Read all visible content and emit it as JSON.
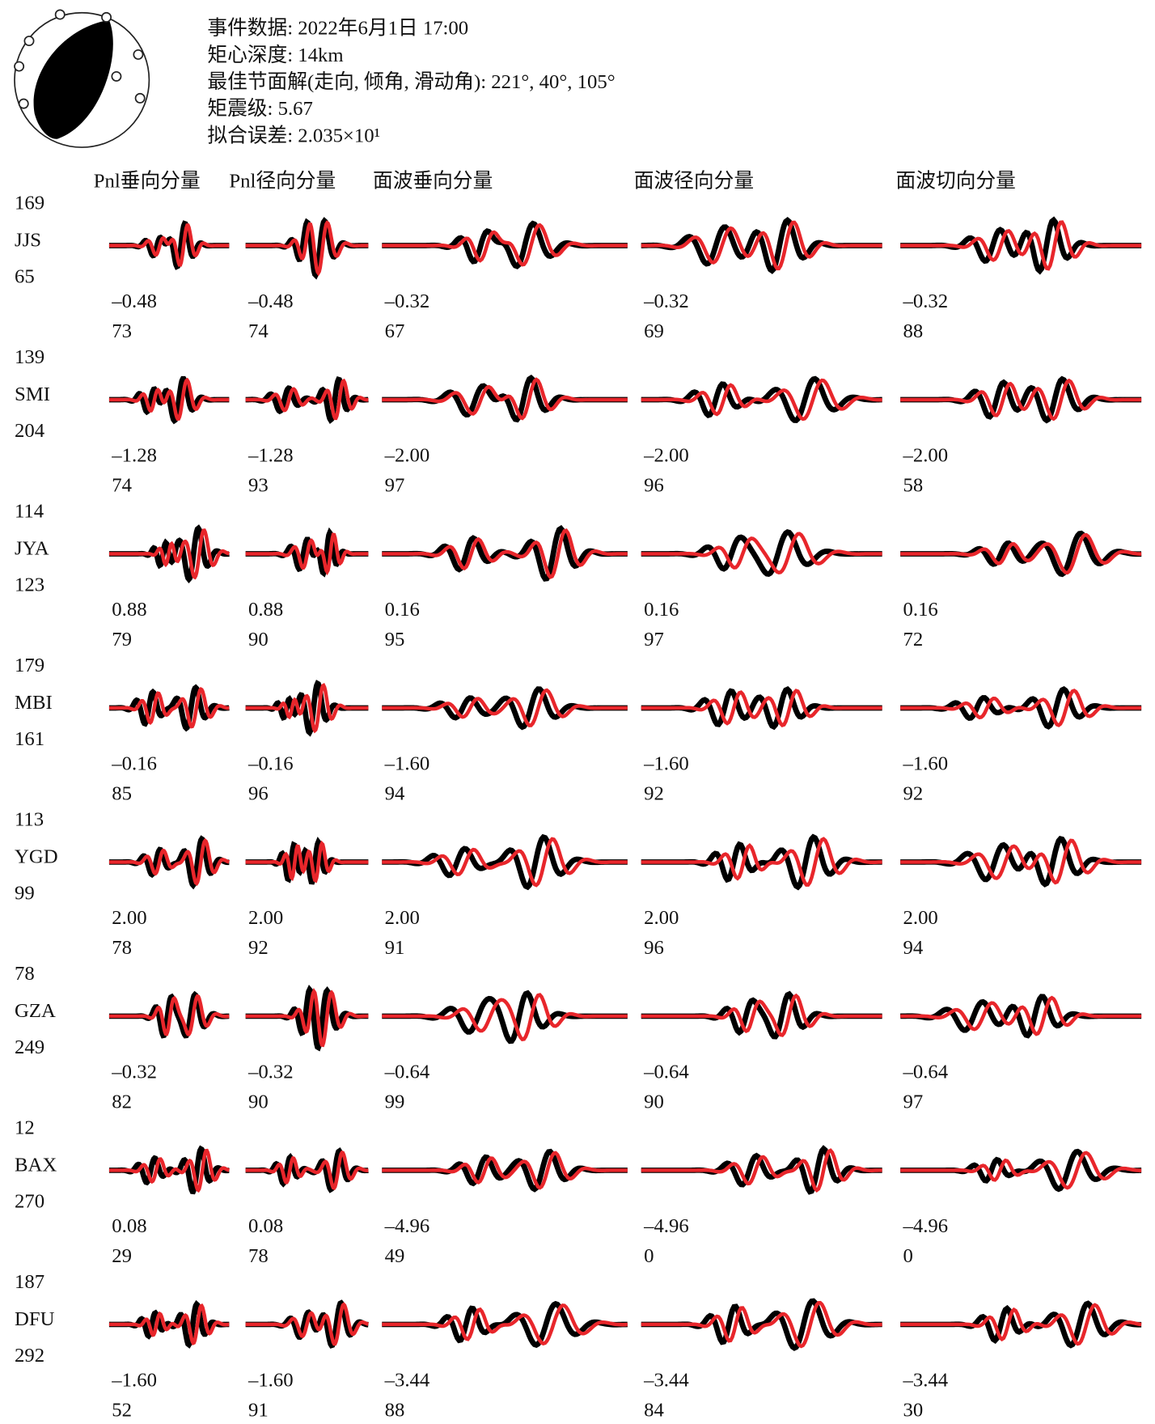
{
  "header": {
    "lines": [
      "事件数据: 2022年6月1日  17:00",
      "矩心深度: 14km",
      "最佳节面解(走向, 倾角, 滑动角): 221°, 40°, 105°",
      "矩震级: 5.67",
      "拟合误差: 2.035×10¹"
    ]
  },
  "columns": [
    "Pnl垂向分量",
    "Pnl径向分量",
    "面波垂向分量",
    "面波径向分量",
    "面波切向分量"
  ],
  "stations": [
    {
      "distance": 169,
      "name": "JJS",
      "azimuth": 65,
      "shifts": [
        "–0.48",
        "–0.48",
        "–0.32",
        "–0.32",
        "–0.32"
      ],
      "correlations": [
        73,
        74,
        67,
        69,
        88
      ]
    },
    {
      "distance": 139,
      "name": "SMI",
      "azimuth": 204,
      "shifts": [
        "–1.28",
        "–1.28",
        "–2.00",
        "–2.00",
        "–2.00"
      ],
      "correlations": [
        74,
        93,
        97,
        96,
        58
      ]
    },
    {
      "distance": 114,
      "name": "JYA",
      "azimuth": 123,
      "shifts": [
        "0.88",
        "0.88",
        "0.16",
        "0.16",
        "0.16"
      ],
      "correlations": [
        79,
        90,
        95,
        97,
        72
      ]
    },
    {
      "distance": 179,
      "name": "MBI",
      "azimuth": 161,
      "shifts": [
        "–0.16",
        "–0.16",
        "–1.60",
        "–1.60",
        "–1.60"
      ],
      "correlations": [
        85,
        96,
        94,
        92,
        92
      ]
    },
    {
      "distance": 113,
      "name": "YGD",
      "azimuth": 99,
      "shifts": [
        "2.00",
        "2.00",
        "2.00",
        "2.00",
        "2.00"
      ],
      "correlations": [
        78,
        92,
        91,
        96,
        94
      ]
    },
    {
      "distance": 78,
      "name": "GZA",
      "azimuth": 249,
      "shifts": [
        "–0.32",
        "–0.32",
        "–0.64",
        "–0.64",
        "–0.64"
      ],
      "correlations": [
        82,
        90,
        99,
        90,
        97
      ]
    },
    {
      "distance": 12,
      "name": "BAX",
      "azimuth": 270,
      "shifts": [
        "0.08",
        "0.08",
        "–4.96",
        "–4.96",
        "–4.96"
      ],
      "correlations": [
        29,
        78,
        49,
        0,
        0
      ]
    },
    {
      "distance": 187,
      "name": "DFU",
      "azimuth": 292,
      "shifts": [
        "–1.60",
        "–1.60",
        "–3.44",
        "–3.44",
        "–3.44"
      ],
      "correlations": [
        52,
        91,
        88,
        84,
        30
      ]
    }
  ]
}
